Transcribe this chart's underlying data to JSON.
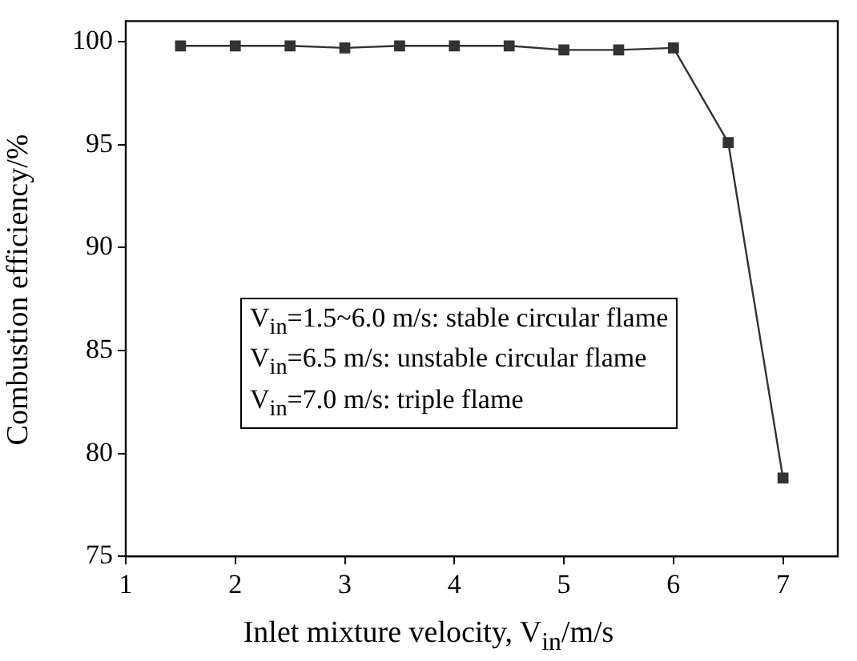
{
  "chart_data": {
    "type": "line",
    "xlabel": "Inlet mixture velocity, V$_{in}$/m/s",
    "ylabel": "Combustion efficiency/%",
    "x": [
      1.5,
      2,
      2.5,
      3,
      3.5,
      4,
      4.5,
      5,
      5.5,
      6,
      6.5,
      7
    ],
    "series": [
      {
        "color": "#333333",
        "values": [
          99.8,
          99.8,
          99.8,
          99.7,
          99.8,
          99.8,
          99.8,
          99.6,
          99.6,
          99.7,
          95.1,
          78.8
        ]
      }
    ],
    "xlim": [
      1,
      7.5
    ],
    "xticks": [
      1,
      2,
      3,
      4,
      5,
      6,
      7
    ],
    "ylim": [
      75,
      101
    ],
    "yticks": [
      75,
      80,
      85,
      90,
      95,
      100
    ],
    "marker": "square",
    "line_style": "solid",
    "grid": false,
    "legend": false,
    "annotations": [
      "V$_{in}$=1.5~6.0 m/s: stable circular flame",
      "V$_{in}$=6.5 m/s: unstable circular flame",
      "V$_{in}$=7.0 m/s: triple flame"
    ]
  }
}
